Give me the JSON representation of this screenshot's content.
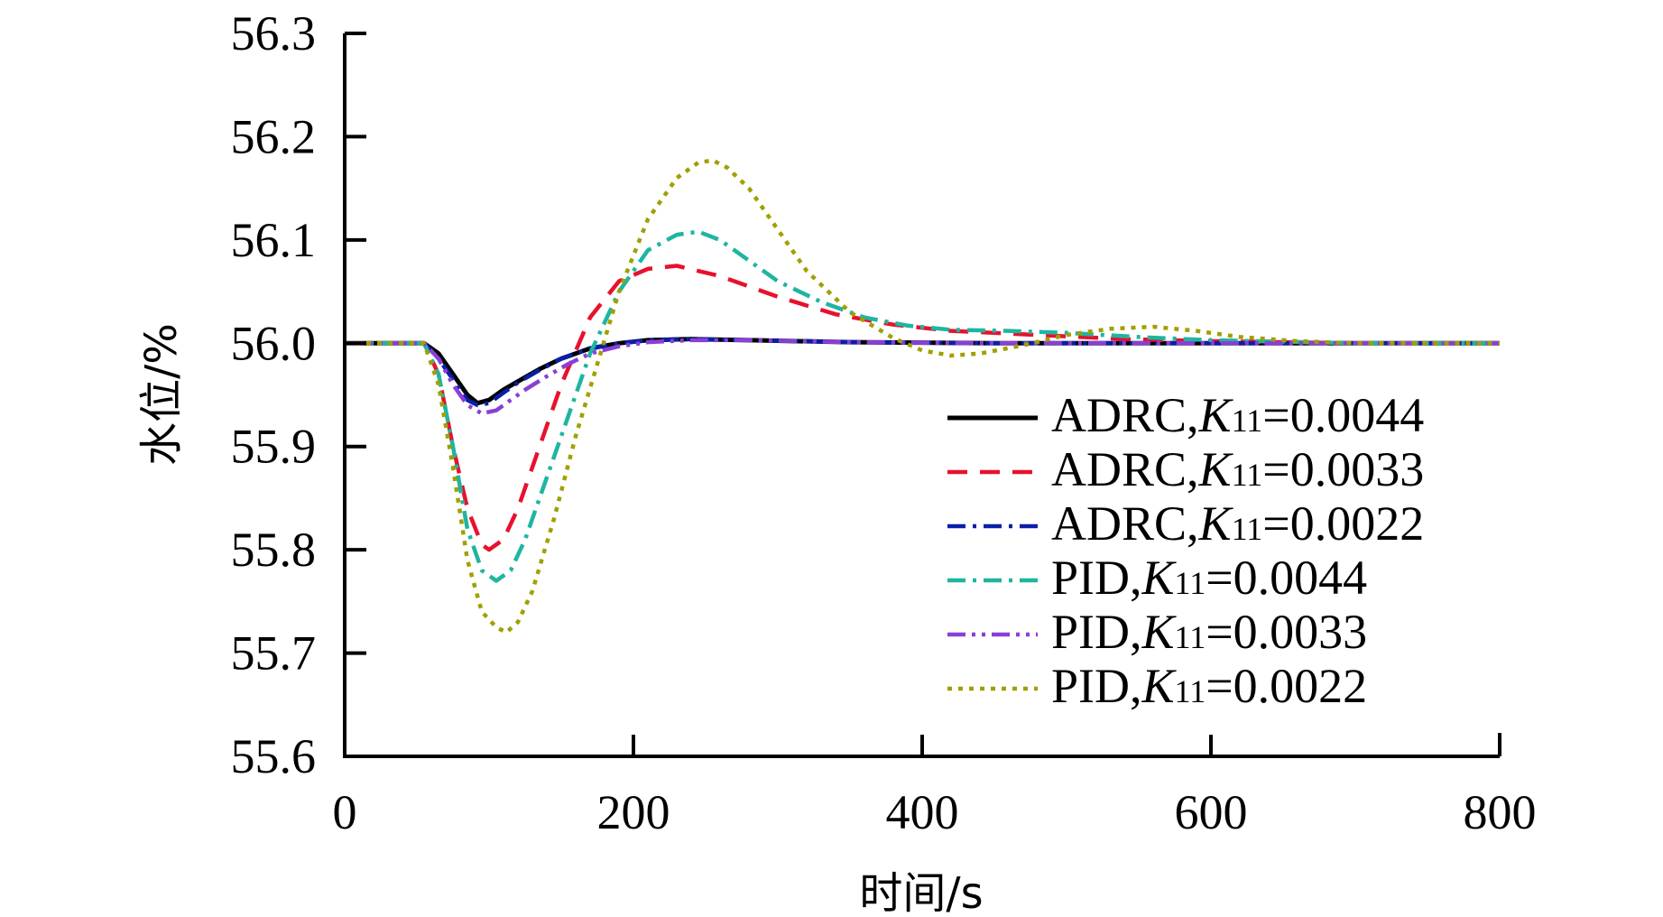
{
  "chart_data": {
    "type": "line",
    "xlabel": "时间/s",
    "ylabel": "水位/%",
    "xlim": [
      0,
      800
    ],
    "ylim": [
      55.6,
      56.3
    ],
    "xticks": [
      "0",
      "200",
      "400",
      "600",
      "800"
    ],
    "yticks": [
      "55.6",
      "55.7",
      "55.8",
      "55.9",
      "56.0",
      "56.1",
      "56.2",
      "56.3"
    ],
    "grid": false,
    "legend_position": "lower-right",
    "series": [
      {
        "name": "ADRC,K11=0.0044",
        "label_prefix": "ADRC,",
        "label_k": "K",
        "label_sub": "11",
        "label_value": "=0.0044",
        "color": "#000000",
        "dash": "solid",
        "x": [
          0,
          50,
          55,
          65,
          75,
          85,
          92,
          100,
          110,
          120,
          135,
          150,
          170,
          190,
          210,
          240,
          280,
          350,
          450,
          600,
          800
        ],
        "y": [
          56.0,
          56.0,
          56.0,
          55.99,
          55.97,
          55.95,
          55.942,
          55.945,
          55.955,
          55.963,
          55.975,
          55.985,
          55.995,
          56.0,
          56.003,
          56.004,
          56.003,
          56.001,
          56.0,
          56.0,
          56.0
        ]
      },
      {
        "name": "ADRC,K11=0.0033",
        "label_prefix": "ADRC,",
        "label_k": "K",
        "label_sub": "11",
        "label_value": "=0.0033",
        "color": "#e8112d",
        "dash": "dash",
        "x": [
          0,
          50,
          55,
          65,
          75,
          85,
          95,
          100,
          110,
          120,
          135,
          150,
          170,
          190,
          210,
          230,
          260,
          300,
          340,
          380,
          420,
          480,
          540,
          600,
          700,
          800
        ],
        "y": [
          56.0,
          56.0,
          56.0,
          55.97,
          55.9,
          55.84,
          55.805,
          55.8,
          55.81,
          55.84,
          55.9,
          55.96,
          56.025,
          56.06,
          56.072,
          56.075,
          56.065,
          56.045,
          56.028,
          56.018,
          56.012,
          56.008,
          56.004,
          56.002,
          56.0,
          56.0
        ]
      },
      {
        "name": "ADRC,K11=0.0022",
        "label_prefix": "ADRC,",
        "label_k": "K",
        "label_sub": "11",
        "label_value": "=0.0022",
        "color": "#0a1fa8",
        "dash": "dashdot",
        "x": [
          0,
          50,
          55,
          65,
          75,
          85,
          92,
          100,
          110,
          120,
          135,
          150,
          170,
          190,
          210,
          240,
          280,
          350,
          450,
          600,
          800
        ],
        "y": [
          56.0,
          56.0,
          56.0,
          55.985,
          55.965,
          55.945,
          55.94,
          55.942,
          55.952,
          55.962,
          55.974,
          55.985,
          55.995,
          56.0,
          56.003,
          56.004,
          56.003,
          56.001,
          56.0,
          56.0,
          56.0
        ]
      },
      {
        "name": "PID,K11=0.0044",
        "label_prefix": "PID,",
        "label_k": "K",
        "label_sub": "11",
        "label_value": "=0.0044",
        "color": "#1fb5a0",
        "dash": "dashdot",
        "x": [
          0,
          50,
          55,
          65,
          75,
          85,
          95,
          105,
          115,
          125,
          140,
          155,
          170,
          190,
          210,
          230,
          245,
          260,
          280,
          300,
          330,
          360,
          390,
          420,
          460,
          500,
          550,
          600,
          700,
          800
        ],
        "y": [
          56.0,
          56.0,
          56.0,
          55.97,
          55.9,
          55.82,
          55.78,
          55.77,
          55.78,
          55.81,
          55.87,
          55.93,
          55.99,
          56.05,
          56.09,
          56.105,
          56.108,
          56.1,
          56.08,
          56.06,
          56.04,
          56.025,
          56.017,
          56.013,
          56.012,
          56.01,
          56.006,
          56.003,
          56.0,
          56.0
        ]
      },
      {
        "name": "PID,K11=0.0033",
        "label_prefix": "PID,",
        "label_k": "K",
        "label_sub": "11",
        "label_value": "=0.0033",
        "color": "#8a3fd6",
        "dash": "dashdotdot",
        "x": [
          0,
          50,
          55,
          65,
          75,
          85,
          95,
          105,
          115,
          125,
          140,
          155,
          170,
          190,
          210,
          240,
          280,
          350,
          450,
          600,
          800
        ],
        "y": [
          56.0,
          56.0,
          56.0,
          55.985,
          55.96,
          55.94,
          55.932,
          55.935,
          55.945,
          55.955,
          55.968,
          55.98,
          55.99,
          55.997,
          56.001,
          56.003,
          56.003,
          56.001,
          56.0,
          56.0,
          56.0
        ]
      },
      {
        "name": "PID,K11=0.0022",
        "label_prefix": "PID,",
        "label_k": "K",
        "label_sub": "11",
        "label_value": "=0.0022",
        "color": "#a0a000",
        "dash": "dot",
        "x": [
          0,
          50,
          55,
          65,
          75,
          85,
          95,
          105,
          112,
          120,
          130,
          145,
          160,
          175,
          190,
          210,
          230,
          245,
          255,
          265,
          280,
          300,
          320,
          350,
          380,
          400,
          420,
          440,
          470,
          500,
          530,
          560,
          590,
          620,
          660,
          700,
          750,
          800
        ],
        "y": [
          56.0,
          56.0,
          56.0,
          55.96,
          55.88,
          55.79,
          55.74,
          55.725,
          55.72,
          55.73,
          55.76,
          55.83,
          55.91,
          55.98,
          56.05,
          56.12,
          56.16,
          56.175,
          56.177,
          56.17,
          56.15,
          56.11,
          56.07,
          56.03,
          56.005,
          55.993,
          55.988,
          55.99,
          55.998,
          56.008,
          56.014,
          56.016,
          56.012,
          56.006,
          56.002,
          56.0,
          56.0,
          56.0
        ]
      }
    ]
  }
}
